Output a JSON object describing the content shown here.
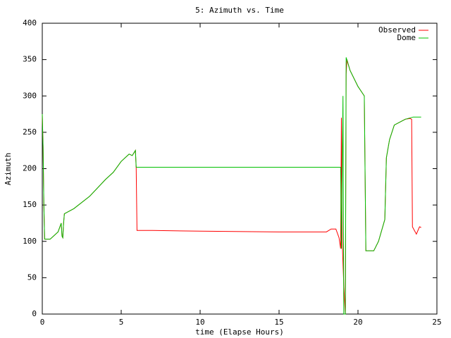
{
  "chart_data": {
    "type": "line",
    "title": "5: Azimuth vs. Time",
    "x_label": "time (Elapse Hours)",
    "y_label": "Azimuth",
    "xlim": [
      0,
      25
    ],
    "xticks": [
      0,
      5,
      10,
      15,
      20,
      25
    ],
    "ylim": [
      0,
      400
    ],
    "yticks": [
      0,
      50,
      100,
      150,
      200,
      250,
      300,
      350,
      400
    ],
    "grid": false,
    "legend": "top-right",
    "series": [
      {
        "name": "Observed",
        "color": "#ff0000",
        "x": [
          0,
          0.05,
          0.1,
          0.15,
          0.5,
          1.0,
          1.2,
          1.25,
          1.3,
          1.35,
          1.4,
          2,
          3,
          4,
          4.5,
          5,
          5.5,
          5.7,
          5.9,
          5.95,
          6.0,
          7,
          10,
          15,
          18,
          18.3,
          18.6,
          18.8,
          18.9,
          18.95,
          19.0,
          19.1,
          19.2,
          19.25,
          19.3,
          19.5,
          20,
          20.4,
          20.5,
          21,
          21.3,
          21.7,
          21.8,
          22,
          22.3,
          23,
          23.3,
          23.4,
          23.45,
          23.7,
          23.9,
          24
        ],
        "values": [
          275,
          230,
          150,
          103,
          103,
          113,
          125,
          107,
          105,
          125,
          138,
          145,
          162,
          185,
          195,
          210,
          220,
          218,
          225,
          200,
          115,
          115,
          114,
          113,
          113,
          117,
          117,
          105,
          90,
          270,
          100,
          40,
          0,
          330,
          350,
          335,
          313,
          300,
          87,
          87,
          100,
          130,
          215,
          240,
          260,
          268,
          269,
          268,
          120,
          110,
          120,
          119
        ]
      },
      {
        "name": "Dome",
        "color": "#00c000",
        "x": [
          0,
          0.05,
          0.1,
          0.15,
          0.5,
          1.0,
          1.2,
          1.25,
          1.3,
          1.35,
          1.4,
          2,
          3,
          4,
          4.5,
          5,
          5.5,
          5.7,
          5.9,
          5.95,
          18.9,
          18.95,
          19.05,
          19.1,
          19.2,
          19.25,
          19.5,
          20,
          20.4,
          20.5,
          21,
          21.3,
          21.7,
          21.8,
          22,
          22.3,
          23,
          23.5,
          24
        ],
        "values": [
          275,
          230,
          150,
          103,
          103,
          113,
          125,
          107,
          105,
          125,
          138,
          145,
          162,
          185,
          195,
          210,
          220,
          218,
          225,
          202,
          202,
          90,
          300,
          0,
          0,
          353,
          335,
          313,
          300,
          87,
          87,
          100,
          130,
          215,
          240,
          260,
          268,
          271,
          271
        ]
      }
    ]
  }
}
